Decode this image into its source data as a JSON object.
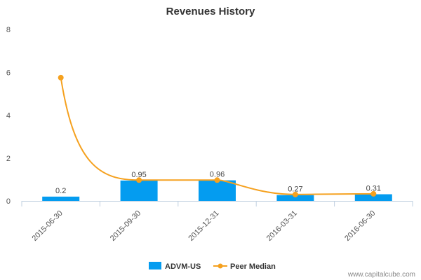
{
  "chart_data": {
    "type": "bar",
    "title": "Revenues History",
    "categories": [
      "2015-06-30",
      "2015-09-30",
      "2015-12-31",
      "2016-03-31",
      "2016-06-30"
    ],
    "series": [
      {
        "name": "ADVM-US",
        "kind": "bar",
        "color": "#049cf0",
        "values": [
          0.2,
          0.95,
          0.96,
          0.27,
          0.31
        ],
        "labels": [
          "0.2",
          "0.95",
          "0.96",
          "0.27",
          "0.31"
        ]
      },
      {
        "name": "Peer Median",
        "kind": "line",
        "color": "#f5a11f",
        "values": [
          5.75,
          0.97,
          0.97,
          0.3,
          0.33
        ]
      }
    ],
    "ylim": [
      0,
      8
    ],
    "yticks": [
      "0",
      "2",
      "4",
      "6",
      "8"
    ],
    "xlabel": "",
    "ylabel": "",
    "grid": false,
    "legend": "bottom-center"
  },
  "watermark": "www.capitalcube.com"
}
